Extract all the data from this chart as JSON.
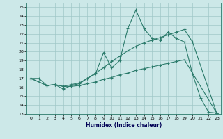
{
  "xlabel": "Humidex (Indice chaleur)",
  "bg_color": "#cce8e8",
  "grid_color": "#a0c8c8",
  "line_color": "#2a7a6a",
  "xlim": [
    -0.5,
    23.5
  ],
  "ylim": [
    13,
    25.5
  ],
  "yticks": [
    13,
    14,
    15,
    16,
    17,
    18,
    19,
    20,
    21,
    22,
    23,
    24,
    25
  ],
  "xticks": [
    0,
    1,
    2,
    3,
    4,
    5,
    6,
    7,
    8,
    9,
    10,
    11,
    12,
    13,
    14,
    15,
    16,
    17,
    18,
    19,
    20,
    21,
    22,
    23
  ],
  "line1_x": [
    0,
    1,
    2,
    3,
    4,
    5,
    6,
    7,
    8,
    9,
    10,
    11,
    12,
    13,
    14,
    15,
    16,
    17,
    18,
    19,
    20,
    21,
    22,
    23
  ],
  "line1_y": [
    17,
    17,
    16.2,
    16.3,
    15.8,
    16.2,
    16.4,
    17.0,
    17.5,
    19.9,
    18.2,
    19.0,
    22.6,
    24.7,
    22.6,
    21.5,
    21.3,
    22.2,
    21.5,
    21.1,
    17.5,
    14.8,
    13.2,
    13.1
  ],
  "line2_x": [
    0,
    2,
    3,
    4,
    5,
    6,
    7,
    8,
    9,
    10,
    11,
    12,
    13,
    14,
    15,
    16,
    17,
    18,
    19,
    20,
    23
  ],
  "line2_y": [
    17.0,
    16.2,
    16.3,
    16.1,
    16.3,
    16.5,
    17.0,
    17.6,
    18.2,
    18.9,
    19.5,
    20.1,
    20.6,
    21.0,
    21.3,
    21.6,
    21.9,
    22.2,
    22.5,
    21.1,
    13.1
  ],
  "line3_x": [
    0,
    2,
    3,
    4,
    5,
    6,
    7,
    8,
    9,
    10,
    11,
    12,
    13,
    14,
    15,
    16,
    17,
    18,
    19,
    23
  ],
  "line3_y": [
    17.0,
    16.2,
    16.3,
    16.1,
    16.1,
    16.2,
    16.4,
    16.6,
    16.9,
    17.1,
    17.4,
    17.6,
    17.9,
    18.1,
    18.3,
    18.5,
    18.7,
    18.9,
    19.1,
    13.1
  ]
}
